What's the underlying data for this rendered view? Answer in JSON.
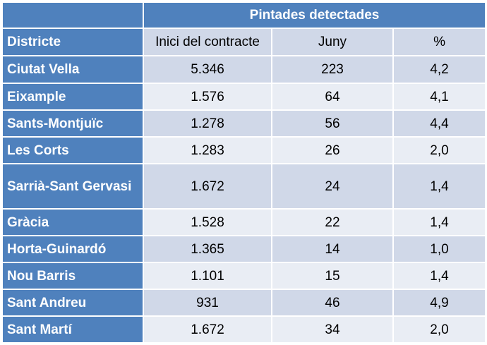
{
  "header": {
    "group_title": "Pintades detectades",
    "columns": [
      "Districte",
      "Inici del contracte",
      "Juny",
      "%"
    ]
  },
  "rows": [
    {
      "district": "Ciutat Vella",
      "inici": "5.346",
      "juny": "223",
      "pct": "4,2"
    },
    {
      "district": "Eixample",
      "inici": "1.576",
      "juny": "64",
      "pct": "4,1"
    },
    {
      "district": "Sants-Montjuïc",
      "inici": "1.278",
      "juny": "56",
      "pct": "4,4"
    },
    {
      "district": "Les Corts",
      "inici": "1.283",
      "juny": "26",
      "pct": "2,0"
    },
    {
      "district": "Sarrià-Sant Gervasi",
      "inici": "1.672",
      "juny": "24",
      "pct": "1,4"
    },
    {
      "district": "Gràcia",
      "inici": "1.528",
      "juny": "22",
      "pct": "1,4"
    },
    {
      "district": "Horta-Guinardó",
      "inici": "1.365",
      "juny": "14",
      "pct": "1,0"
    },
    {
      "district": "Nou Barris",
      "inici": "1.101",
      "juny": "15",
      "pct": "1,4"
    },
    {
      "district": "Sant Andreu",
      "inici": "931",
      "juny": "46",
      "pct": "4,9"
    },
    {
      "district": "Sant Martí",
      "inici": "1.672",
      "juny": "34",
      "pct": "2,0"
    }
  ],
  "colors": {
    "header_blue": "#4f81bd",
    "band_dark": "#d0d8e8",
    "band_light": "#e9edf4"
  }
}
